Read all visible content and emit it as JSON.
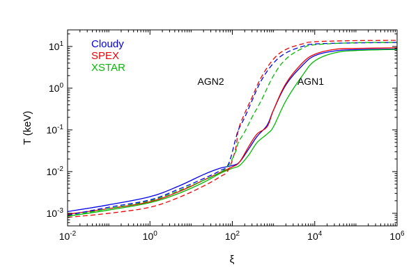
{
  "chart_data": {
    "type": "line",
    "xlabel": "ξ",
    "ylabel": "T (keV)",
    "xscale": "log",
    "yscale": "log",
    "xlim": [
      0.01,
      1000000
    ],
    "ylim": [
      0.0005,
      25
    ],
    "x_ticks": [
      {
        "value": 0.01,
        "base": "10",
        "exp": "-2"
      },
      {
        "value": 1,
        "base": "10",
        "exp": "0"
      },
      {
        "value": 100,
        "base": "10",
        "exp": "2"
      },
      {
        "value": 10000,
        "base": "10",
        "exp": "4"
      },
      {
        "value": 1000000,
        "base": "10",
        "exp": "6"
      }
    ],
    "y_ticks": [
      {
        "value": 0.001,
        "base": "10",
        "exp": "-3"
      },
      {
        "value": 0.01,
        "base": "10",
        "exp": "-2"
      },
      {
        "value": 0.1,
        "base": "10",
        "exp": "-1"
      },
      {
        "value": 1,
        "base": "10",
        "exp": "0"
      },
      {
        "value": 10,
        "base": "10",
        "exp": "1"
      }
    ],
    "grid": false,
    "legend": {
      "placement": "top-left",
      "entries": [
        {
          "label": "Cloudy",
          "color": "#0000ee"
        },
        {
          "label": "SPEX",
          "color": "#ee0000"
        },
        {
          "label": "XSTAR",
          "color": "#00bb00"
        }
      ]
    },
    "annotations": [
      {
        "text": "AGN2",
        "x": 30,
        "y": 1.2
      },
      {
        "text": "AGN1",
        "x": 8000,
        "y": 1.2
      }
    ],
    "series": [
      {
        "code": "Cloudy",
        "model": "AGN1",
        "style": "solid",
        "color": "#0000ee",
        "x": [
          0.01,
          0.1,
          1,
          5,
          20,
          50,
          100,
          150,
          250,
          400,
          700,
          1000,
          2000,
          5000,
          10000,
          30000,
          100000,
          1000000
        ],
        "y": [
          0.0011,
          0.0016,
          0.0025,
          0.0045,
          0.0085,
          0.012,
          0.014,
          0.017,
          0.035,
          0.07,
          0.13,
          0.3,
          1.2,
          3.5,
          6.0,
          7.8,
          8.4,
          8.7
        ]
      },
      {
        "code": "SPEX",
        "model": "AGN1",
        "style": "solid",
        "color": "#ee0000",
        "x": [
          0.01,
          0.1,
          1,
          5,
          20,
          50,
          100,
          150,
          250,
          400,
          700,
          1000,
          2000,
          5000,
          10000,
          30000,
          100000,
          1000000
        ],
        "y": [
          0.00095,
          0.0013,
          0.0019,
          0.0033,
          0.0062,
          0.0095,
          0.013,
          0.017,
          0.04,
          0.08,
          0.12,
          0.3,
          1.3,
          4.0,
          6.5,
          8.5,
          9.0,
          9.3
        ]
      },
      {
        "code": "XSTAR",
        "model": "AGN1",
        "style": "solid",
        "color": "#00bb00",
        "x": [
          0.01,
          0.1,
          1,
          5,
          20,
          50,
          100,
          150,
          250,
          400,
          700,
          1000,
          2000,
          5000,
          10000,
          30000,
          100000,
          1000000
        ],
        "y": [
          0.00085,
          0.0012,
          0.0018,
          0.003,
          0.0055,
          0.009,
          0.012,
          0.014,
          0.025,
          0.05,
          0.08,
          0.12,
          0.5,
          2.0,
          4.5,
          7.0,
          8.0,
          8.5
        ]
      },
      {
        "code": "Cloudy",
        "model": "AGN2",
        "style": "dashed",
        "color": "#0000ee",
        "x": [
          0.01,
          0.1,
          1,
          5,
          20,
          50,
          80,
          120,
          140,
          200,
          300,
          500,
          1000,
          2000,
          5000,
          10000,
          100000,
          1000000
        ],
        "y": [
          0.0009,
          0.0014,
          0.0021,
          0.0038,
          0.0068,
          0.0105,
          0.015,
          0.06,
          0.1,
          0.2,
          0.5,
          1.5,
          4.0,
          7.0,
          10.0,
          11.5,
          12.2,
          12.5
        ]
      },
      {
        "code": "SPEX",
        "model": "AGN2",
        "style": "dashed",
        "color": "#ee0000",
        "x": [
          0.01,
          0.1,
          1,
          5,
          20,
          50,
          80,
          120,
          140,
          200,
          300,
          500,
          1000,
          2000,
          5000,
          10000,
          100000,
          1000000
        ],
        "y": [
          0.0008,
          0.001,
          0.0014,
          0.0024,
          0.0045,
          0.0075,
          0.011,
          0.035,
          0.1,
          0.25,
          0.6,
          1.8,
          5.0,
          8.5,
          11.5,
          13.0,
          13.8,
          14.0
        ]
      },
      {
        "code": "XSTAR",
        "model": "AGN2",
        "style": "dashed",
        "color": "#00bb00",
        "x": [
          0.01,
          0.1,
          1,
          5,
          20,
          50,
          80,
          120,
          140,
          200,
          300,
          500,
          1000,
          2000,
          5000,
          10000,
          100000,
          1000000
        ],
        "y": [
          0.00085,
          0.0013,
          0.002,
          0.0035,
          0.0062,
          0.0095,
          0.014,
          0.03,
          0.05,
          0.09,
          0.2,
          0.5,
          2.0,
          5.0,
          9.0,
          11.0,
          12.3,
          12.5
        ]
      }
    ]
  }
}
